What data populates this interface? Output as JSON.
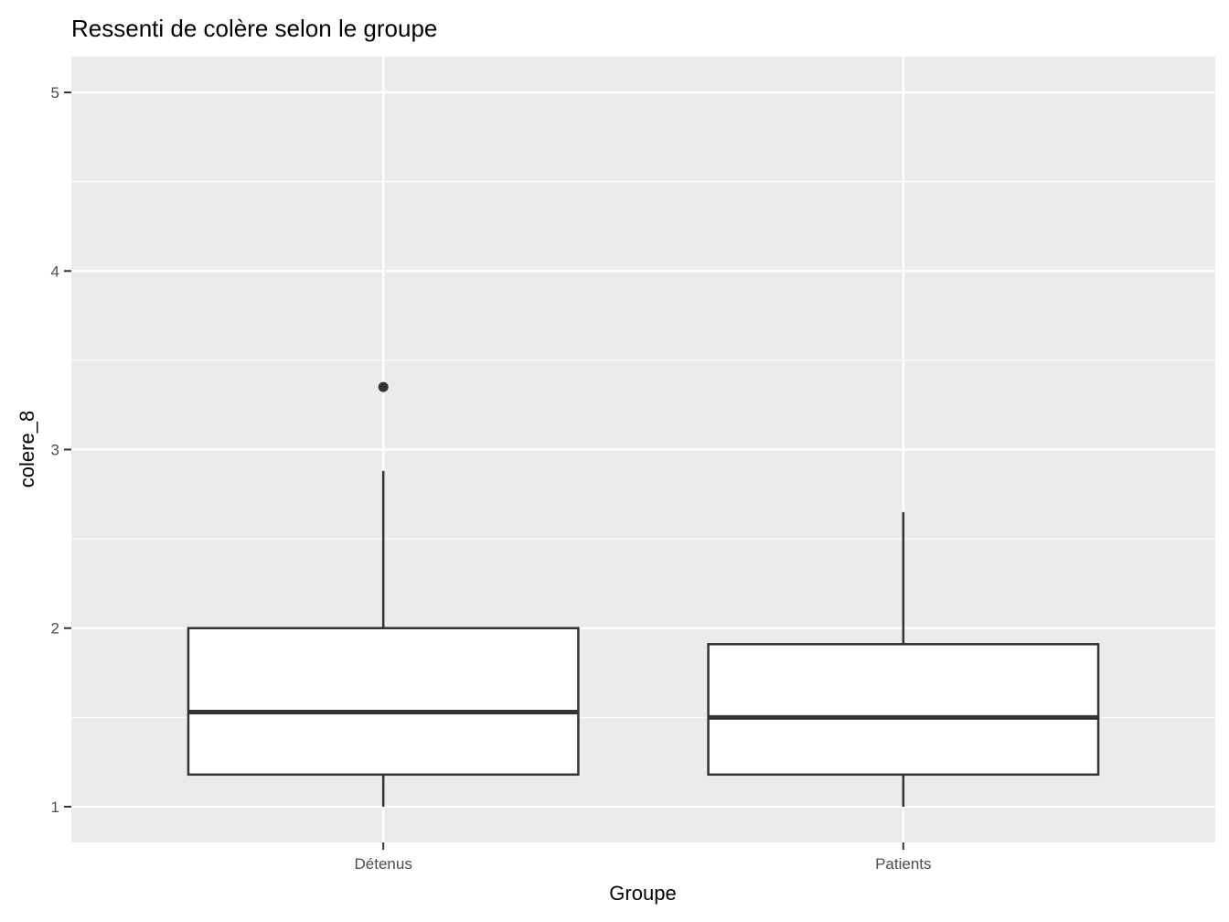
{
  "chart_data": {
    "type": "boxplot",
    "title": "Ressenti de colère selon le groupe",
    "xlabel": "Groupe",
    "ylabel": "colere_8",
    "categories": [
      "Détenus",
      "Patients"
    ],
    "yticks": [
      1,
      2,
      3,
      4,
      5
    ],
    "ylim": [
      0.8,
      5.2
    ],
    "grid": true,
    "boxes": [
      {
        "category": "Détenus",
        "whisker_low": 1.0,
        "q1": 1.18,
        "median": 1.53,
        "q3": 2.0,
        "whisker_high": 2.88,
        "outliers": [
          3.35
        ]
      },
      {
        "category": "Patients",
        "whisker_low": 1.0,
        "q1": 1.18,
        "median": 1.5,
        "q3": 1.91,
        "whisker_high": 2.65,
        "outliers": []
      }
    ],
    "colors": {
      "panel_background": "#ebebeb",
      "grid": "#ffffff",
      "box_fill": "#ffffff",
      "box_line": "#333333",
      "tick_text": "#4d4d4d",
      "tick_mark": "#333333"
    }
  }
}
